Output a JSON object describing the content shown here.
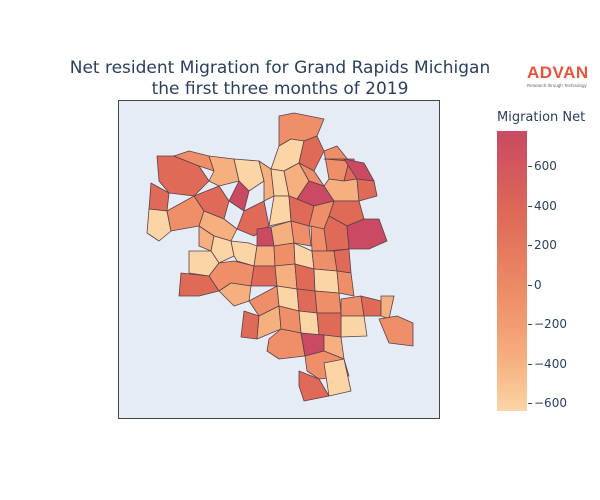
{
  "title": {
    "line1": "Net resident Migration for Grand Rapids Michigan",
    "line2": "the first three months of 2019"
  },
  "logo": {
    "name": "ADVAN",
    "tagline": "Research through Technology"
  },
  "colorbar": {
    "title": "Migration Net",
    "ticks": [
      "600",
      "400",
      "200",
      "0",
      "−200",
      "−400",
      "−600"
    ],
    "range": [
      -650,
      800
    ],
    "colorscale": [
      "#fcd5a6",
      "#f6b07f",
      "#ef8f69",
      "#de6a57",
      "#c94a62"
    ]
  },
  "map": {
    "background": "#e5ecf6",
    "border_color": "#444444"
  }
}
